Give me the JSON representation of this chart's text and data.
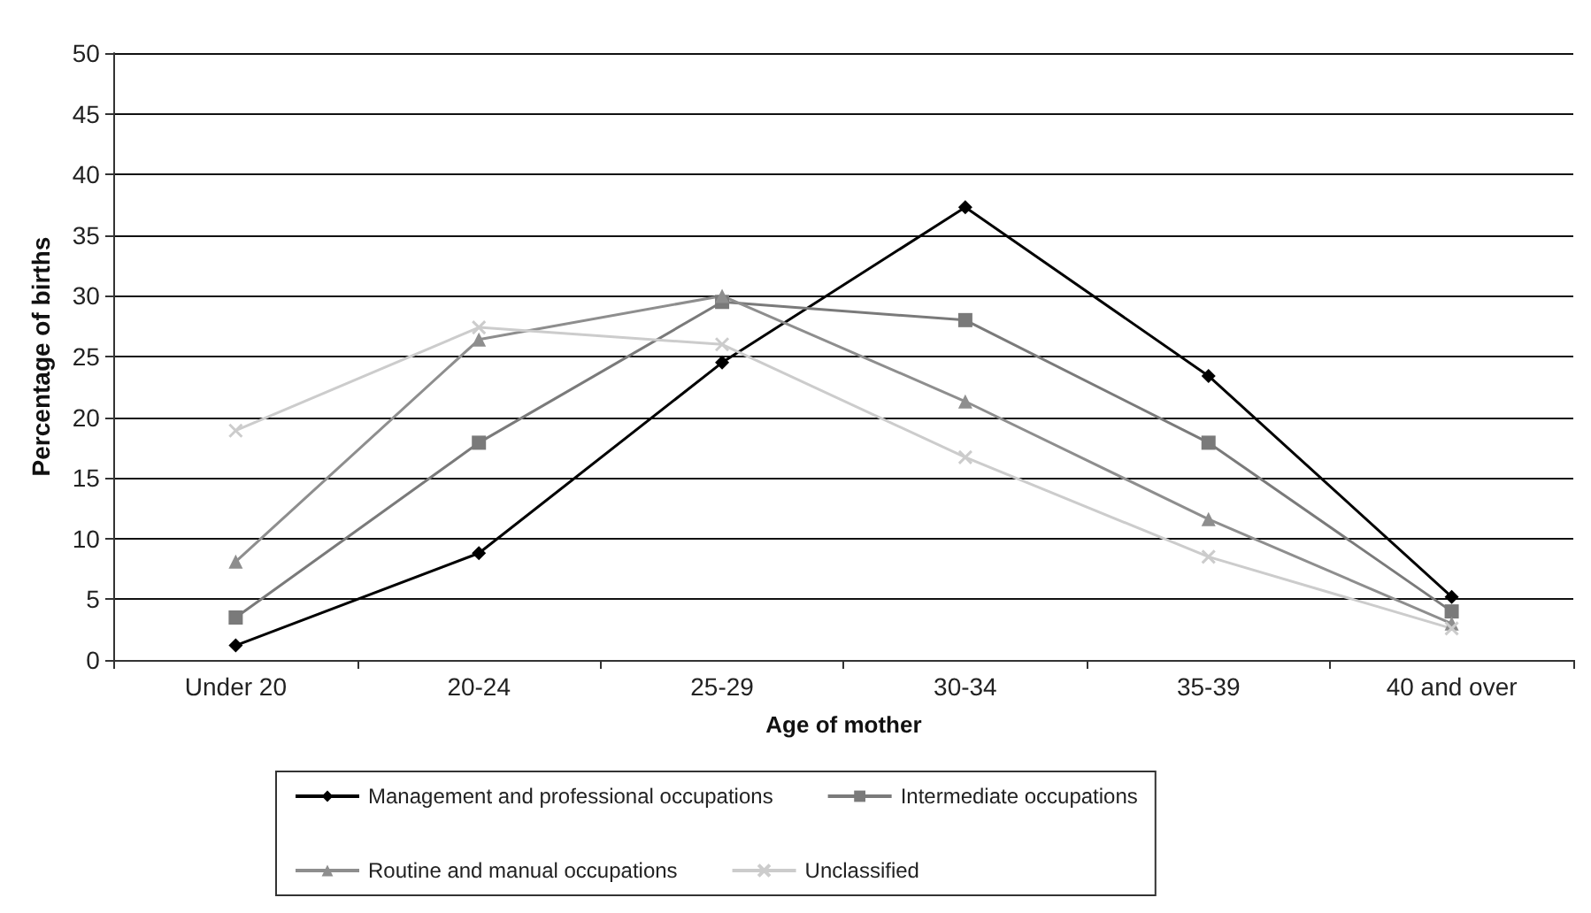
{
  "chart_data": {
    "type": "line",
    "xlabel": "Age of mother",
    "ylabel": "Percentage of births",
    "categories": [
      "Under 20",
      "20-24",
      "25-29",
      "30-34",
      "35-39",
      "40 and over"
    ],
    "series": [
      {
        "name": "Management and professional occupations",
        "color": "#000000",
        "marker": "diamond",
        "values": [
          1.2,
          8.8,
          24.5,
          37.3,
          23.4,
          5.2
        ]
      },
      {
        "name": "Intermediate occupations",
        "color": "#7a7a7a",
        "marker": "square",
        "values": [
          3.5,
          17.9,
          29.5,
          28,
          17.9,
          4
        ]
      },
      {
        "name": "Routine and manual occupations",
        "color": "#8e8e8e",
        "marker": "triangle",
        "values": [
          8.1,
          26.4,
          30,
          21.3,
          11.6,
          3
        ]
      },
      {
        "name": "Unclassified",
        "color": "#cccccc",
        "marker": "cross",
        "values": [
          18.9,
          27.4,
          26,
          16.7,
          8.5,
          2.6
        ]
      }
    ],
    "ylim": [
      0,
      50
    ],
    "yticks": [
      0,
      5,
      10,
      15,
      20,
      25,
      30,
      35,
      40,
      45,
      50
    ],
    "grid": "y",
    "legend": "bottom",
    "line_style": "solid"
  }
}
